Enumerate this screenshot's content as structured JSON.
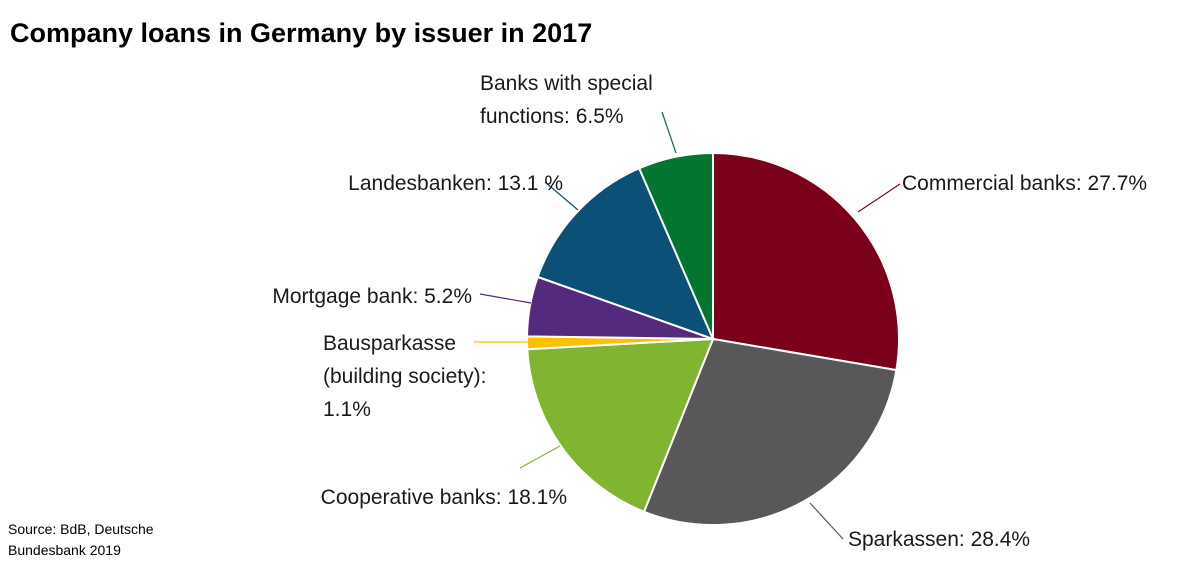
{
  "title": "Company loans in Germany by issuer in 2017",
  "source": [
    "Source: BdB, Deutsche",
    "Bundesbank 2019"
  ],
  "chart_data": {
    "type": "pie",
    "title": "Company loans in Germany by issuer in 2017",
    "unit": "%",
    "slices": [
      {
        "label_lines": [
          "Commercial banks: 27.7%"
        ],
        "value": 27.7,
        "color": "#7b0019"
      },
      {
        "label_lines": [
          "Sparkassen: 28.4%"
        ],
        "value": 28.4,
        "color": "#58585a"
      },
      {
        "label_lines": [
          "Cooperative banks: 18.1%"
        ],
        "value": 18.1,
        "color": "#80b431"
      },
      {
        "label_lines": [
          "Bausparkasse",
          "(building society):",
          "1.1%"
        ],
        "value": 1.1,
        "color": "#ffc000"
      },
      {
        "label_lines": [
          "Mortgage bank: 5.2%"
        ],
        "value": 5.2,
        "color": "#542a7e"
      },
      {
        "label_lines": [
          "Landesbanken: 13.1 %"
        ],
        "value": 13.1,
        "color": "#0b5076"
      },
      {
        "label_lines": [
          "Banks with special",
          "functions: 6.5%"
        ],
        "value": 6.5,
        "color": "#037530"
      }
    ]
  }
}
